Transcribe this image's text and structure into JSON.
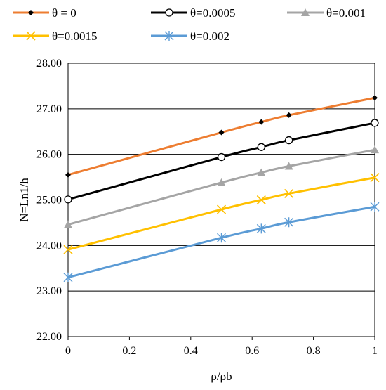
{
  "chart_data": {
    "type": "line",
    "title": "",
    "xlabel": "ρ/ρb",
    "ylabel": "N=Ln1/h",
    "xlim": [
      0,
      1
    ],
    "ylim": [
      22,
      28
    ],
    "x_ticks": [
      "0",
      "0.2",
      "0.4",
      "0.6",
      "0.8",
      "1"
    ],
    "x_tick_values": [
      0,
      0.2,
      0.4,
      0.6,
      0.8,
      1
    ],
    "y_ticks": [
      "22.00",
      "23.00",
      "24.00",
      "25.00",
      "26.00",
      "27.00",
      "28.00"
    ],
    "y_tick_values": [
      22,
      23,
      24,
      25,
      26,
      27,
      28
    ],
    "grid": "horizontal",
    "legend_position": "top",
    "x": [
      0,
      0.5,
      0.63,
      0.72,
      1
    ],
    "series": [
      {
        "name": "θ = 0",
        "values": [
          25.55,
          26.48,
          26.71,
          26.86,
          27.24
        ],
        "line_color": "#ED7D31",
        "marker": "diamond",
        "marker_color": "#000000"
      },
      {
        "name": "θ=0.0005",
        "values": [
          25.01,
          25.94,
          26.16,
          26.31,
          26.69
        ],
        "line_color": "#000000",
        "marker": "circle-open",
        "marker_color": "#000000"
      },
      {
        "name": "θ=0.001",
        "values": [
          24.46,
          25.38,
          25.6,
          25.74,
          26.1
        ],
        "line_color": "#A5A5A5",
        "marker": "triangle",
        "marker_color": "#A5A5A5"
      },
      {
        "name": "θ=0.0015",
        "values": [
          23.91,
          24.79,
          25.0,
          25.14,
          25.49
        ],
        "line_color": "#FFC000",
        "marker": "x",
        "marker_color": "#FFC000"
      },
      {
        "name": "θ=0.002",
        "values": [
          23.3,
          24.17,
          24.37,
          24.51,
          24.85
        ],
        "line_color": "#5B9BD5",
        "marker": "asterisk",
        "marker_color": "#5B9BD5"
      }
    ]
  }
}
